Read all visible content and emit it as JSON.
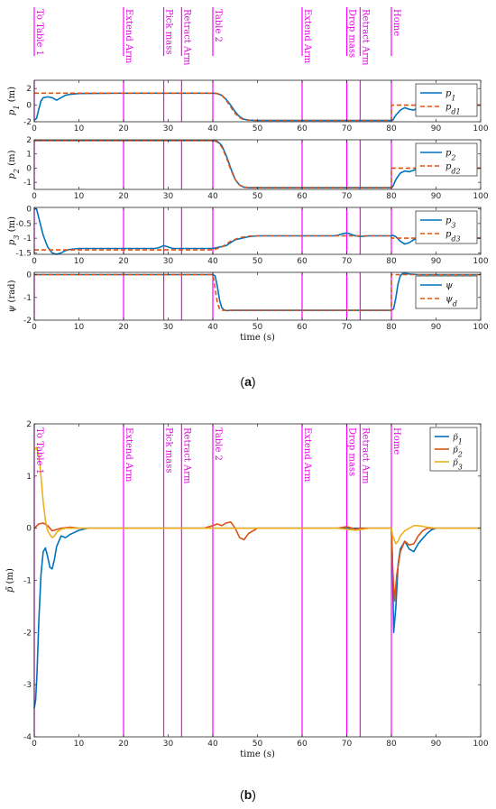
{
  "colors": {
    "blue": "#0072BD",
    "orange": "#D95319",
    "yellow": "#EDB120",
    "magenta": "#FF00FF",
    "event_text": "#E000E0",
    "axis": "#262626"
  },
  "captions": {
    "a": "a",
    "b": "b"
  },
  "events": [
    {
      "t": 0,
      "label": "To Table 1"
    },
    {
      "t": 20,
      "label": "Extend Arm"
    },
    {
      "t": 29,
      "label": "Pick mass"
    },
    {
      "t": 33,
      "label": "Retract Arm"
    },
    {
      "t": 40,
      "label": "Table 2"
    },
    {
      "t": 60,
      "label": "Extend Arm"
    },
    {
      "t": 70,
      "label": "Drop mass"
    },
    {
      "t": 73,
      "label": "Retract Arm"
    },
    {
      "t": 80,
      "label": "Home"
    }
  ],
  "chart_data": [
    {
      "type": "line",
      "panel": "a1",
      "ylabel": "p1 (m)",
      "xlim": [
        0,
        100
      ],
      "ylim": [
        -2,
        3
      ],
      "yticks": [
        -2,
        0,
        2
      ],
      "xticks": [
        0,
        10,
        20,
        30,
        40,
        50,
        60,
        70,
        80,
        90,
        100
      ],
      "legend_position": "top-right",
      "series": [
        {
          "name": "p1",
          "color": "blue",
          "style": "solid",
          "x": [
            0,
            0.5,
            1,
            1.5,
            2,
            3,
            4,
            5,
            6,
            7,
            8,
            10,
            20,
            40,
            41,
            42,
            43,
            44,
            45,
            46,
            47,
            48,
            50,
            60,
            70,
            80,
            80.3,
            81,
            82,
            83,
            84,
            85,
            86,
            87,
            88,
            90,
            100
          ],
          "y": [
            -1.8,
            -1.6,
            -0.5,
            0.5,
            0.9,
            1.0,
            0.9,
            0.6,
            0.9,
            1.2,
            1.3,
            1.4,
            1.45,
            1.45,
            1.4,
            1.2,
            0.7,
            0.0,
            -0.8,
            -1.4,
            -1.7,
            -1.8,
            -1.85,
            -1.85,
            -1.85,
            -1.85,
            -1.8,
            -1.2,
            -0.6,
            -0.3,
            -0.5,
            -0.6,
            -0.3,
            -0.1,
            0.0,
            0.0,
            0.0
          ]
        },
        {
          "name": "pd1",
          "color": "orange",
          "style": "dashed",
          "x": [
            0,
            20,
            40,
            41,
            42,
            43,
            44,
            45,
            46,
            47,
            48,
            50,
            60,
            70,
            80,
            80.001,
            100
          ],
          "y": [
            1.45,
            1.45,
            1.45,
            1.4,
            1.2,
            0.6,
            -0.2,
            -1.0,
            -1.5,
            -1.75,
            -1.82,
            -1.85,
            -1.85,
            -1.85,
            -1.85,
            0.0,
            0.0
          ]
        }
      ]
    },
    {
      "type": "line",
      "panel": "a2",
      "ylabel": "p2 (m)",
      "xlim": [
        0,
        100
      ],
      "ylim": [
        -1.5,
        2
      ],
      "yticks": [
        -1,
        0,
        1,
        2
      ],
      "xticks": [
        0,
        10,
        20,
        30,
        40,
        50,
        60,
        70,
        80,
        90,
        100
      ],
      "legend_position": "top-right",
      "series": [
        {
          "name": "p2",
          "color": "blue",
          "style": "solid",
          "x": [
            0,
            1,
            2,
            5,
            10,
            20,
            40,
            41,
            42,
            43,
            44,
            45,
            46,
            47,
            48,
            50,
            60,
            70,
            80,
            80.3,
            81,
            82,
            83,
            84,
            85,
            86,
            88,
            90,
            100
          ],
          "y": [
            1.95,
            1.95,
            1.95,
            1.95,
            1.95,
            1.95,
            1.95,
            1.9,
            1.6,
            0.9,
            0.0,
            -0.8,
            -1.2,
            -1.35,
            -1.38,
            -1.38,
            -1.38,
            -1.38,
            -1.38,
            -1.3,
            -0.8,
            -0.35,
            -0.2,
            -0.25,
            -0.15,
            -0.05,
            0.0,
            0.0,
            0.0
          ]
        },
        {
          "name": "pd2",
          "color": "orange",
          "style": "dashed",
          "x": [
            0,
            20,
            40,
            41,
            42,
            43,
            44,
            45,
            46,
            47,
            48,
            50,
            60,
            70,
            80,
            80.001,
            100
          ],
          "y": [
            1.95,
            1.95,
            1.95,
            1.85,
            1.5,
            0.8,
            -0.1,
            -0.8,
            -1.2,
            -1.33,
            -1.37,
            -1.38,
            -1.38,
            -1.38,
            -1.38,
            0.0,
            0.0
          ]
        }
      ]
    },
    {
      "type": "line",
      "panel": "a3",
      "ylabel": "p3 (m)",
      "xlim": [
        0,
        100
      ],
      "ylim": [
        -1.55,
        0.05
      ],
      "yticks": [
        -1.5,
        -1,
        -0.5,
        0
      ],
      "xticks": [
        0,
        10,
        20,
        30,
        40,
        50,
        60,
        70,
        80,
        90,
        100
      ],
      "legend_position": "top-right",
      "series": [
        {
          "name": "p3",
          "color": "blue",
          "style": "solid",
          "x": [
            0,
            0.5,
            1,
            2,
            3,
            4,
            5,
            6,
            7,
            8,
            10,
            20,
            27,
            28,
            29,
            30,
            31,
            33,
            40,
            43,
            45,
            48,
            50,
            55,
            60,
            67,
            68,
            69,
            70,
            71,
            72,
            73,
            75,
            80,
            80.3,
            81,
            82,
            83,
            84,
            85,
            86,
            88,
            90,
            100
          ],
          "y": [
            0.0,
            0.0,
            -0.3,
            -0.9,
            -1.3,
            -1.5,
            -1.55,
            -1.5,
            -1.42,
            -1.38,
            -1.35,
            -1.35,
            -1.35,
            -1.32,
            -1.25,
            -1.3,
            -1.35,
            -1.35,
            -1.35,
            -1.25,
            -1.05,
            -0.95,
            -0.92,
            -0.92,
            -0.92,
            -0.92,
            -0.9,
            -0.85,
            -0.82,
            -0.87,
            -0.92,
            -0.94,
            -0.92,
            -0.92,
            -0.9,
            -0.95,
            -1.1,
            -1.2,
            -1.15,
            -1.05,
            -0.98,
            -1.0,
            -1.0,
            -1.0
          ]
        },
        {
          "name": "pd3",
          "color": "orange",
          "style": "dashed",
          "x": [
            0,
            40,
            42,
            44,
            46,
            48,
            50,
            60,
            70,
            80,
            80.001,
            100
          ],
          "y": [
            -1.4,
            -1.4,
            -1.3,
            -1.1,
            -0.98,
            -0.93,
            -0.92,
            -0.92,
            -0.92,
            -0.92,
            -1.0,
            -1.0
          ]
        }
      ]
    },
    {
      "type": "line",
      "panel": "a4",
      "ylabel": "ψ (rad)",
      "xlabel": "time (s)",
      "xlim": [
        0,
        100
      ],
      "ylim": [
        -2,
        0.1
      ],
      "yticks": [
        -2,
        -1,
        0
      ],
      "xticks": [
        0,
        10,
        20,
        30,
        40,
        50,
        60,
        70,
        80,
        90,
        100
      ],
      "xticklabels": true,
      "legend_position": "top-right",
      "series": [
        {
          "name": "ψ",
          "color": "blue",
          "style": "solid",
          "x": [
            0,
            20,
            40,
            40.5,
            41,
            41.5,
            42,
            42.5,
            43,
            44,
            45,
            50,
            60,
            70,
            80,
            80.5,
            81,
            81.5,
            82,
            82.5,
            83,
            84,
            86,
            90,
            100
          ],
          "y": [
            0.0,
            0.0,
            0.0,
            -0.05,
            -0.5,
            -1.1,
            -1.45,
            -1.55,
            -1.58,
            -1.57,
            -1.57,
            -1.57,
            -1.57,
            -1.57,
            -1.57,
            -1.5,
            -1.0,
            -0.4,
            -0.05,
            0.05,
            0.06,
            0.03,
            0.0,
            0.0,
            0.0
          ]
        },
        {
          "name": "ψd",
          "color": "orange",
          "style": "dashed",
          "x": [
            0,
            40,
            40.5,
            41,
            41.5,
            42,
            43,
            45,
            60,
            70,
            80,
            80.001,
            100
          ],
          "y": [
            0.0,
            0.0,
            -0.6,
            -1.2,
            -1.5,
            -1.57,
            -1.57,
            -1.57,
            -1.57,
            -1.57,
            -1.57,
            0.0,
            0.0
          ]
        }
      ]
    },
    {
      "type": "line",
      "panel": "b",
      "ylabel": "p̃ (m)",
      "xlabel": "time (s)",
      "xlim": [
        0,
        100
      ],
      "ylim": [
        -4,
        2
      ],
      "yticks": [
        -4,
        -3,
        -2,
        -1,
        0,
        1,
        2
      ],
      "xticks": [
        0,
        10,
        20,
        30,
        40,
        50,
        60,
        70,
        80,
        90,
        100
      ],
      "xticklabels": true,
      "legend_position": "top-right",
      "series": [
        {
          "name": "p̃1",
          "color": "blue",
          "style": "solid",
          "x": [
            0,
            0.3,
            0.6,
            1,
            1.5,
            2,
            2.5,
            3,
            3.5,
            4,
            4.5,
            5,
            6,
            7,
            8,
            9,
            10,
            12,
            20,
            40,
            60,
            80,
            80.2,
            80.5,
            81,
            81.5,
            82,
            83,
            84,
            85,
            86,
            87,
            88,
            89,
            90,
            100
          ],
          "y": [
            -3.45,
            -3.3,
            -2.8,
            -1.8,
            -0.9,
            -0.45,
            -0.38,
            -0.55,
            -0.75,
            -0.78,
            -0.6,
            -0.35,
            -0.15,
            -0.18,
            -0.12,
            -0.08,
            -0.04,
            0.0,
            0.0,
            0.0,
            0.0,
            0.0,
            -0.5,
            -2.0,
            -1.5,
            -0.7,
            -0.4,
            -0.25,
            -0.4,
            -0.45,
            -0.3,
            -0.2,
            -0.1,
            -0.03,
            0.0,
            0.0
          ]
        },
        {
          "name": "p̃2",
          "color": "orange",
          "style": "solid",
          "x": [
            0,
            1,
            2,
            3,
            4,
            6,
            8,
            10,
            20,
            38,
            40,
            41,
            42,
            43,
            44,
            45,
            46,
            47,
            48,
            50,
            60,
            68,
            70,
            72,
            73,
            75,
            80,
            80.3,
            80.7,
            81.2,
            82,
            83,
            84,
            85,
            86,
            87,
            88,
            90,
            100
          ],
          "y": [
            0.0,
            0.08,
            0.1,
            0.05,
            -0.05,
            0.0,
            0.02,
            0.0,
            0.0,
            0.0,
            0.05,
            0.08,
            0.05,
            0.1,
            0.12,
            0.0,
            -0.18,
            -0.22,
            -0.1,
            0.0,
            0.0,
            0.0,
            0.03,
            -0.02,
            0.0,
            0.0,
            0.0,
            -0.8,
            -1.4,
            -0.9,
            -0.45,
            -0.25,
            -0.32,
            -0.3,
            -0.15,
            -0.05,
            0.0,
            0.0,
            0.0
          ]
        },
        {
          "name": "p̃3",
          "color": "yellow",
          "style": "solid",
          "x": [
            0,
            0.5,
            1,
            1.5,
            2,
            2.5,
            3,
            3.5,
            4,
            4.5,
            5,
            6,
            7,
            8,
            10,
            20,
            40,
            60,
            68,
            70,
            72,
            75,
            80,
            80.3,
            81,
            81.5,
            82,
            83,
            84,
            85,
            86,
            88,
            90,
            100
          ],
          "y": [
            1.5,
            1.55,
            1.4,
            1.0,
            0.5,
            0.15,
            -0.05,
            -0.12,
            -0.18,
            -0.15,
            -0.08,
            -0.02,
            0.0,
            0.0,
            0.0,
            0.0,
            0.0,
            0.0,
            0.0,
            -0.02,
            -0.04,
            0.0,
            0.0,
            -0.15,
            -0.3,
            -0.25,
            -0.15,
            -0.05,
            0.0,
            0.05,
            0.05,
            0.02,
            0.0,
            0.0
          ]
        }
      ]
    }
  ]
}
